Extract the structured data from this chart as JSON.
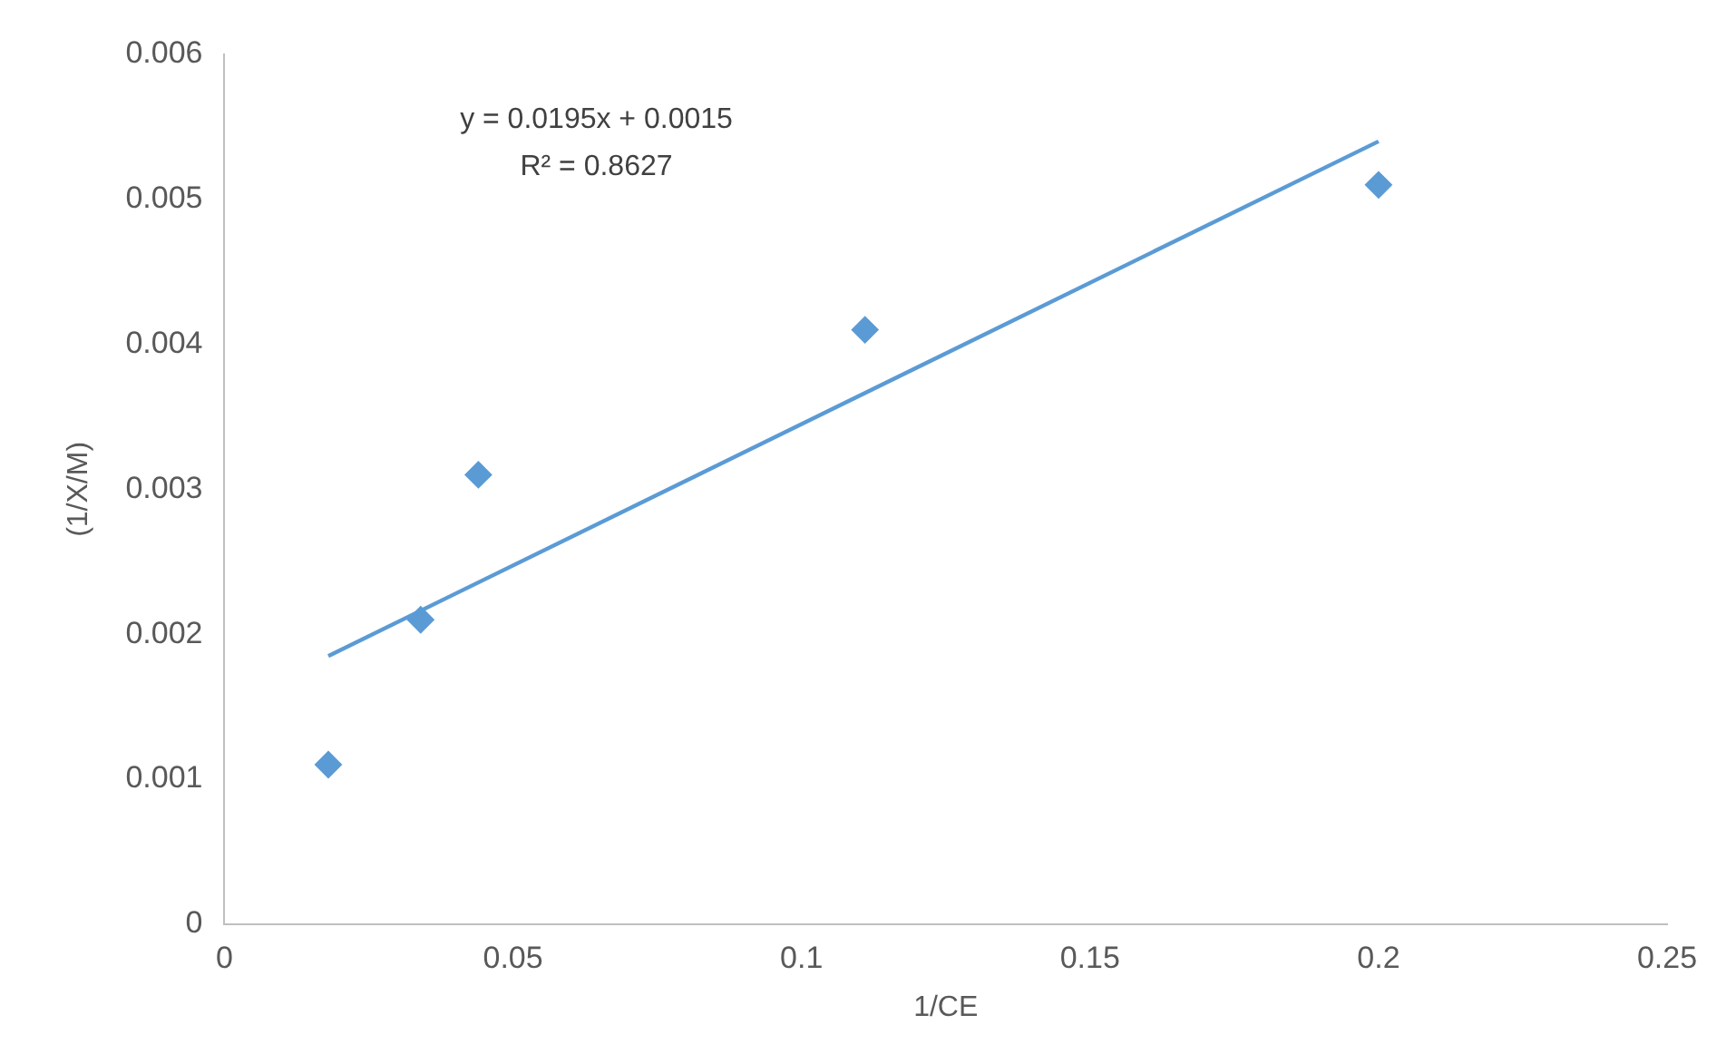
{
  "chart_data": {
    "type": "scatter",
    "xlabel": "1/CE",
    "ylabel": "(1/X/M)",
    "x": [
      0.018,
      0.034,
      0.044,
      0.111,
      0.2
    ],
    "series": [
      {
        "color": "#5b9bd5",
        "values": [
          0.0011,
          0.0021,
          0.0031,
          0.0041,
          0.0051
        ],
        "marker": "diamond"
      },
      {
        "type": "line",
        "color": "#5b9bd5",
        "x": [
          0.018,
          0.2
        ],
        "values": [
          0.00185,
          0.0054
        ],
        "marker": "none",
        "line_style": "solid"
      }
    ],
    "xlim": [
      0,
      0.25
    ],
    "xticks": [
      0,
      0.05,
      0.1,
      0.15,
      0.2,
      0.25
    ],
    "ylim": [
      0,
      0.006
    ],
    "yticks": [
      0,
      0.001,
      0.002,
      0.003,
      0.004,
      0.005,
      0.006
    ],
    "grid": false,
    "legend": false,
    "annotations": [
      "y = 0.0195x + 0.0015",
      "R² = 0.8627"
    ]
  }
}
